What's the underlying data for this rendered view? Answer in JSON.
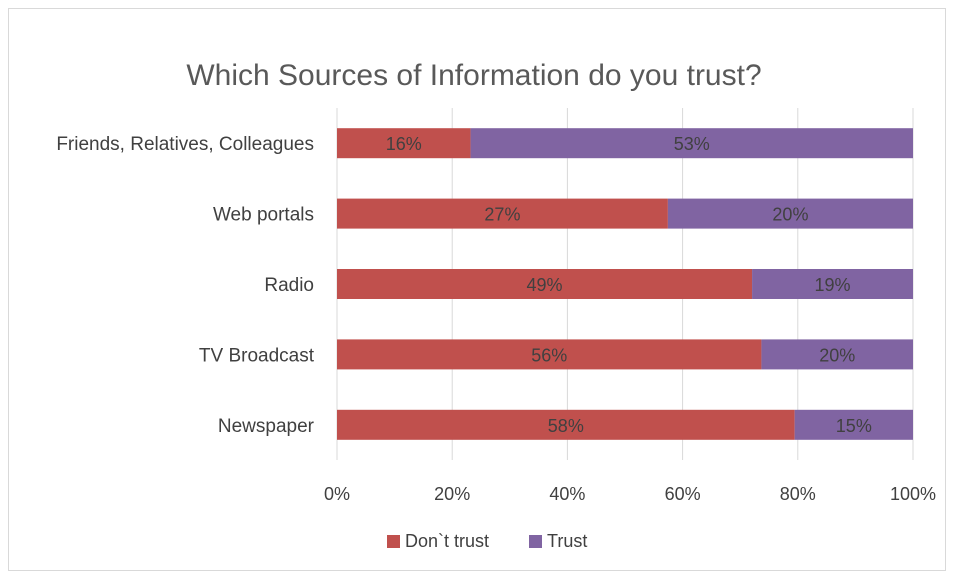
{
  "chart_data": {
    "type": "bar",
    "orientation": "horizontal",
    "stacked": "percent",
    "title": "Which Sources of Information do you trust?",
    "categories": [
      "Friends, Relatives, Colleagues",
      "Web portals",
      "Radio",
      "TV Broadcast",
      "Newspaper"
    ],
    "series": [
      {
        "name": "Don`t trust",
        "values": [
          16,
          27,
          49,
          56,
          58
        ],
        "labels": [
          "16%",
          "27%",
          "49%",
          "56%",
          "58%"
        ],
        "color": "#c0504d"
      },
      {
        "name": "Trust",
        "values": [
          53,
          20,
          19,
          20,
          15
        ],
        "labels": [
          "53%",
          "20%",
          "19%",
          "20%",
          "15%"
        ],
        "color": "#8064a2"
      }
    ],
    "xlim": [
      0,
      100
    ],
    "xticks": [
      "0%",
      "20%",
      "40%",
      "60%",
      "80%",
      "100%"
    ],
    "grid": true,
    "legend_position": "bottom"
  }
}
